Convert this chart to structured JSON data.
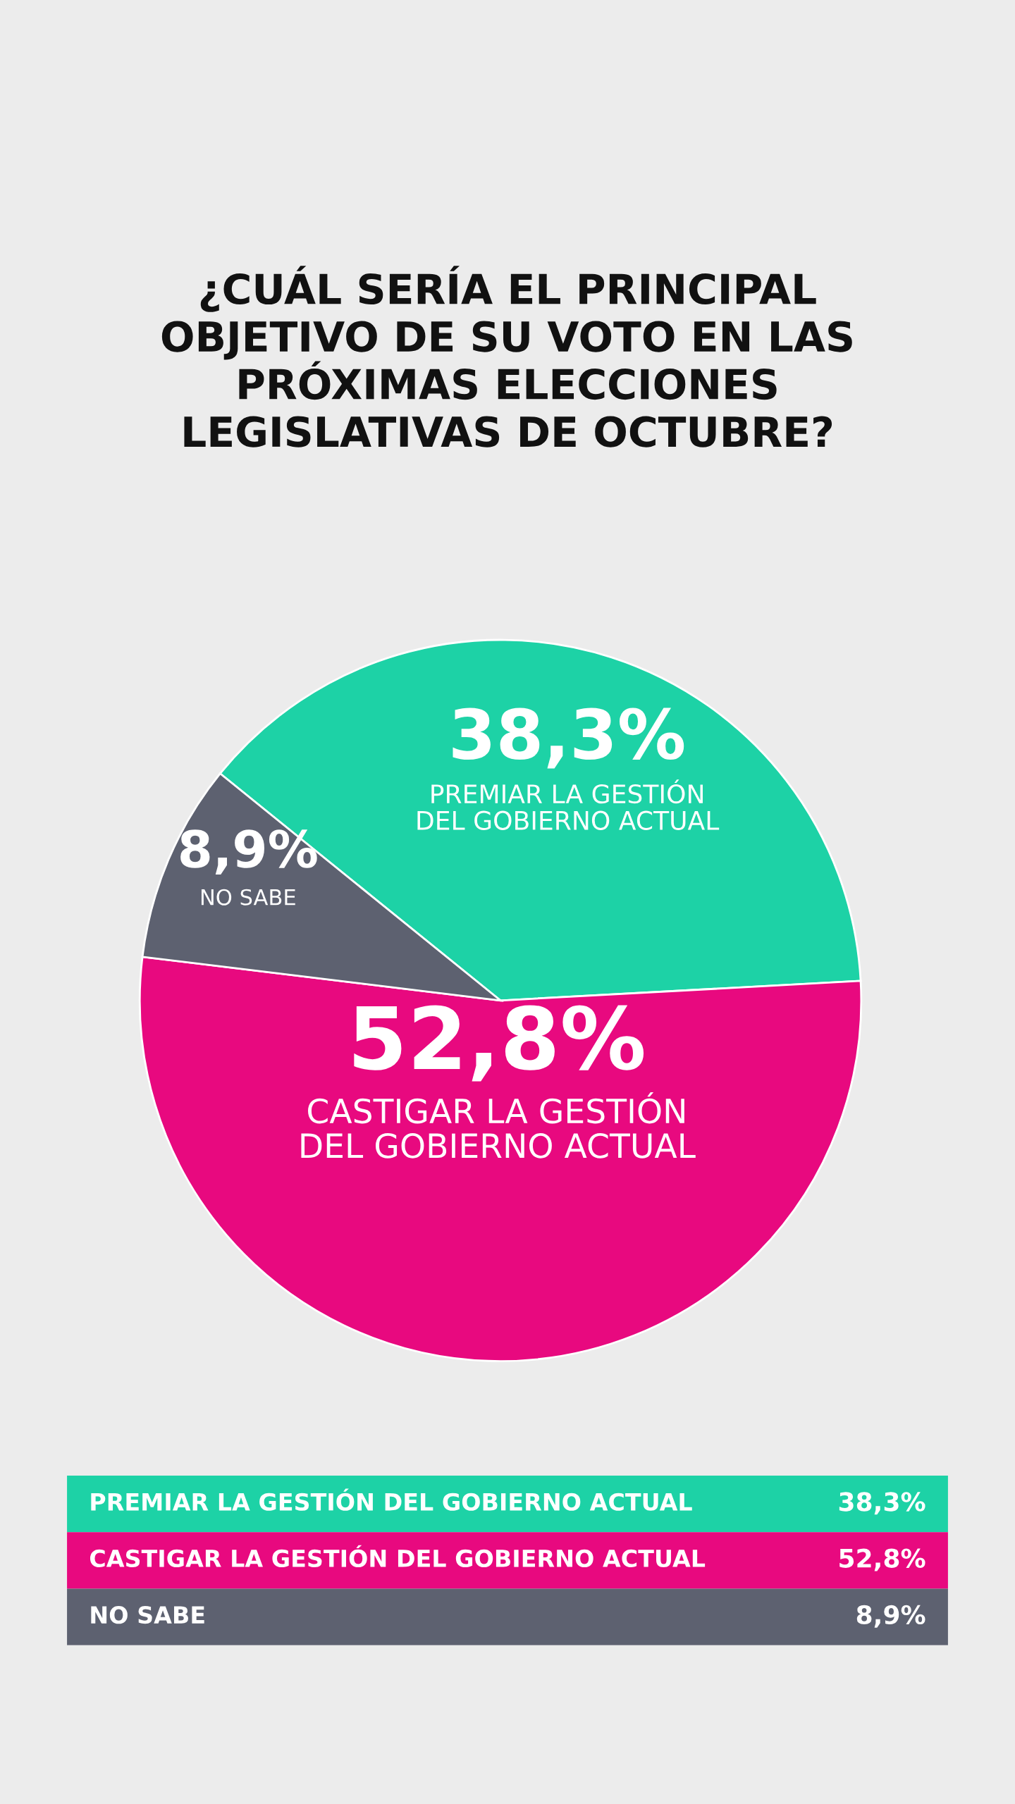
{
  "chart_data": {
    "type": "pie",
    "title": "¿CUÁL SERÍA EL PRINCIPAL\nOBJETIVO DE SU VOTO EN LAS\nPRÓXIMAS ELECCIONES\nLEGISLATIVAS DE OCTUBRE?",
    "categories": [
      "PREMIAR LA GESTIÓN DEL GOBIERNO ACTUAL",
      "CASTIGAR LA GESTIÓN DEL GOBIERNO ACTUAL",
      "NO SABE"
    ],
    "values": [
      38.3,
      52.8,
      8.9
    ],
    "value_labels": [
      "38,3%",
      "52,8%",
      "8,9%"
    ],
    "colors": [
      "#1dd2a6",
      "#e8097f",
      "#5d6170"
    ]
  }
}
